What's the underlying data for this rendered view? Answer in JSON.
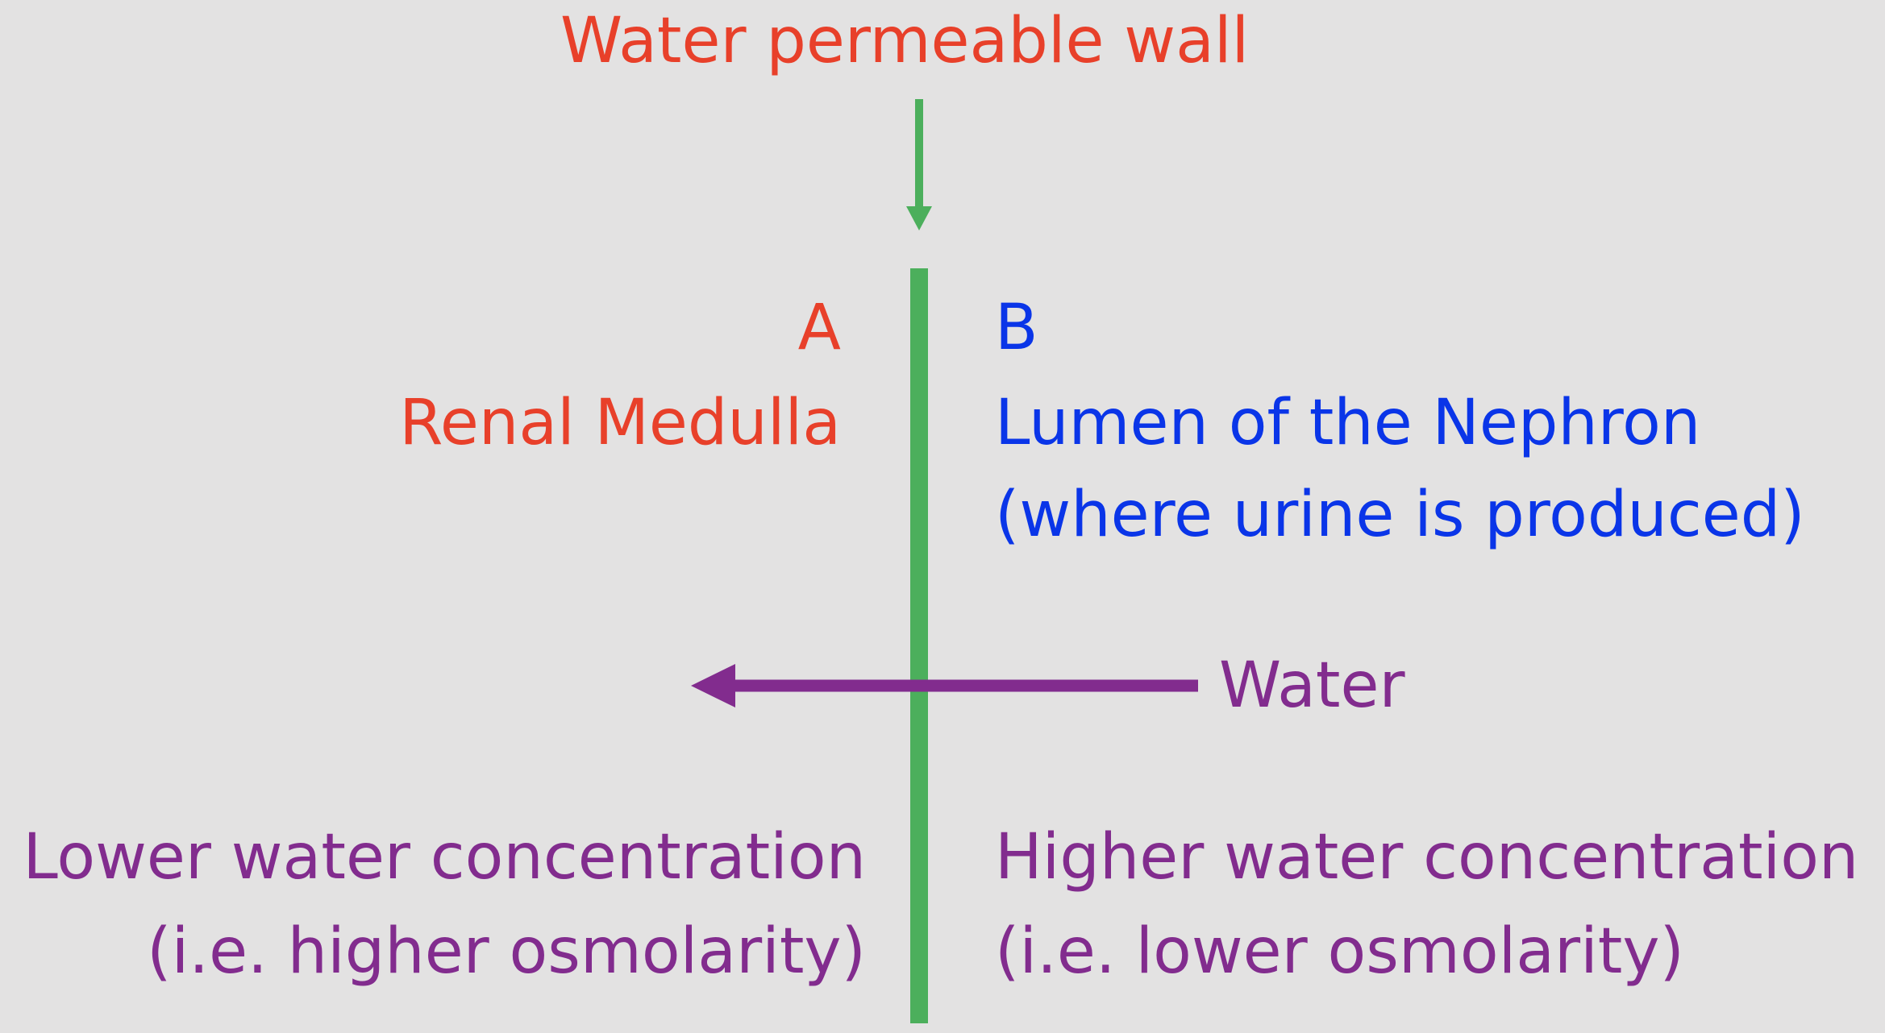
{
  "title": "Water permeable wall",
  "side_a": {
    "letter": "A",
    "name": "Renal Medulla",
    "concentration_line1": "Lower water concentration",
    "concentration_line2": "(i.e. higher osmolarity)"
  },
  "side_b": {
    "letter": "B",
    "name_line1": "Lumen of the Nephron",
    "name_line2": "(where urine is produced)",
    "concentration_line1": "Higher water concentration",
    "concentration_line2": "(i.e. lower osmolarity)"
  },
  "flow_label": "Water",
  "colors": {
    "background": "#e3e2e2",
    "wall": "#4caf5c",
    "side_a_text": "#e8402a",
    "side_b_text": "#0a35e8",
    "water_text": "#822c8e"
  }
}
